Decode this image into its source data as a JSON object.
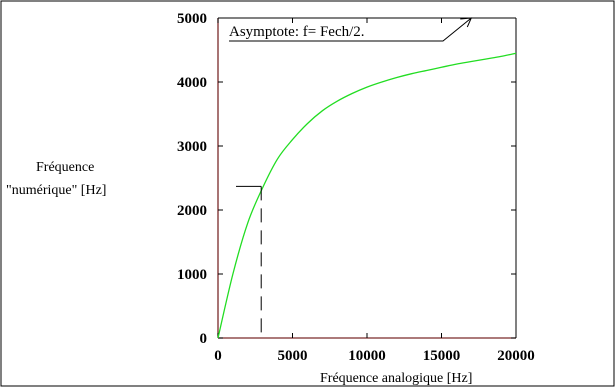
{
  "chart_data": {
    "type": "line",
    "title": "",
    "ylabel_lines": [
      "Fréquence",
      "\"numérique\" [Hz]"
    ],
    "xlabel": "Fréquence analogique [Hz]",
    "xlim": [
      0,
      20000
    ],
    "ylim": [
      0,
      5000
    ],
    "xticks": [
      0,
      5000,
      10000,
      15000,
      20000
    ],
    "yticks": [
      0,
      1000,
      2000,
      3000,
      4000,
      5000
    ],
    "xtick_labels": [
      "0",
      "5000",
      "10000",
      "15000",
      "20000"
    ],
    "ytick_labels": [
      "0",
      "1000",
      "2000",
      "3000",
      "4000",
      "5000"
    ],
    "grid": false,
    "series": [
      {
        "color": "#22dd22",
        "x": [
          0,
          1000,
          2000,
          3000,
          4000,
          5000,
          6000,
          7000,
          8000,
          9000,
          10000,
          11000,
          12000,
          13000,
          14000,
          15000,
          16000,
          17000,
          18000,
          19000,
          20000
        ],
        "y": [
          0,
          1000,
          1800,
          2350,
          2800,
          3100,
          3350,
          3550,
          3700,
          3820,
          3920,
          4000,
          4070,
          4130,
          4180,
          4230,
          4280,
          4320,
          4360,
          4400,
          4450
        ]
      }
    ],
    "reference_point": {
      "x": 2900,
      "y": 2370
    },
    "annotation": {
      "text": "Asymptote: f= Fech/2.",
      "arrow_to": {
        "x": 17000,
        "y": 5000
      }
    },
    "colors": {
      "axis_frame": "#7a2a2a",
      "curve": "#22dd22",
      "outer_frame": "#000000"
    }
  }
}
